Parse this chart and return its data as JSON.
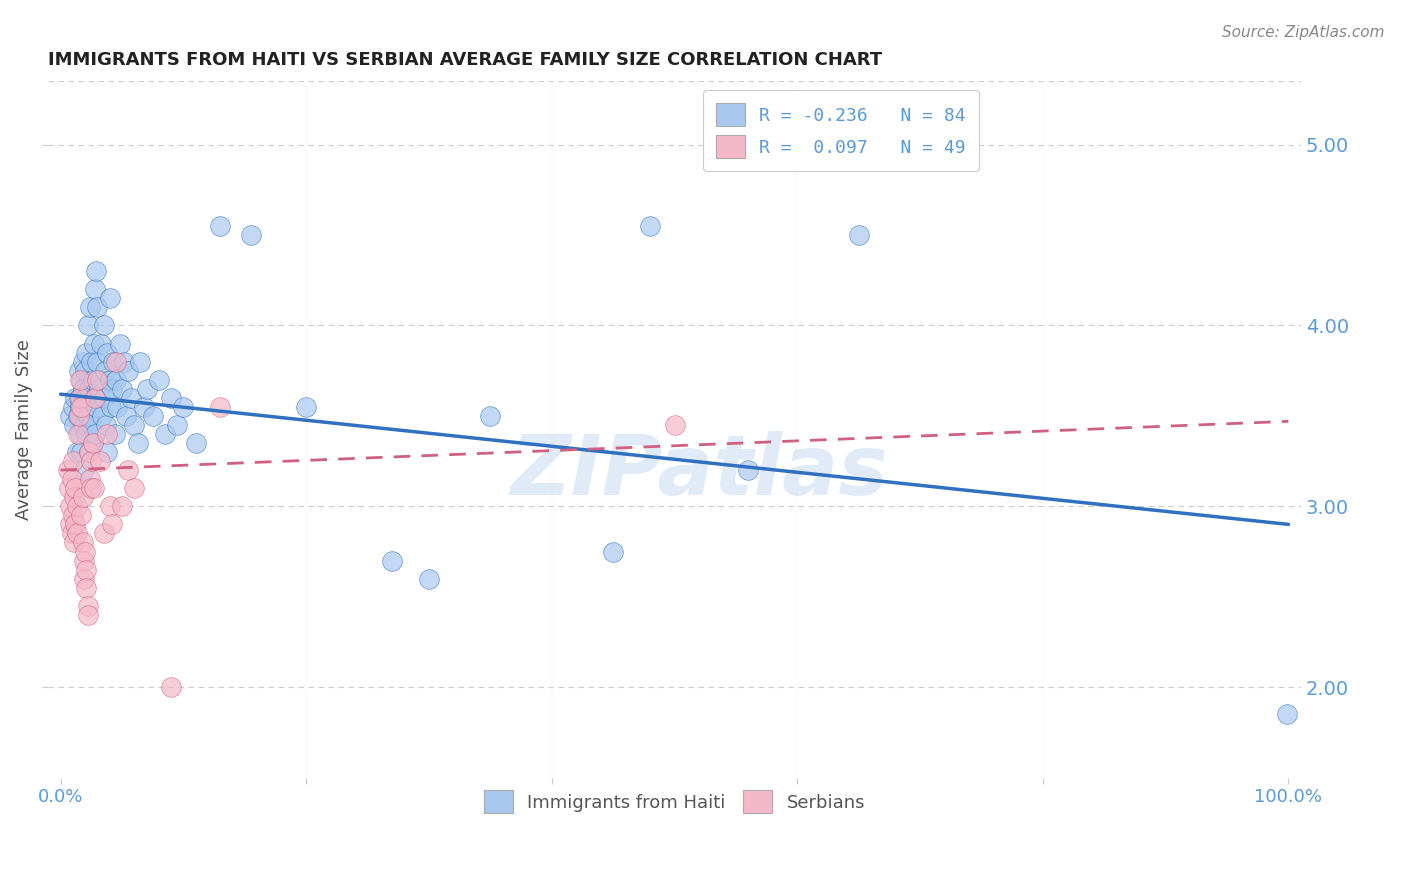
{
  "title": "IMMIGRANTS FROM HAITI VS SERBIAN AVERAGE FAMILY SIZE CORRELATION CHART",
  "source": "Source: ZipAtlas.com",
  "ylabel": "Average Family Size",
  "yticks": [
    2.0,
    3.0,
    4.0,
    5.0
  ],
  "legend_label_blue": "Immigrants from Haiti",
  "legend_label_pink": "Serbians",
  "legend_text_blue": "R = -0.236   N = 84",
  "legend_text_pink": "R =  0.097   N = 49",
  "watermark": "ZIPatlas",
  "blue_face": "#A8C8F0",
  "pink_face": "#F5B8C8",
  "line_blue": "#3070C0",
  "line_pink": "#D06080",
  "title_color": "#222222",
  "tick_color": "#5B9BD5",
  "blue_scatter": [
    [
      0.008,
      3.5
    ],
    [
      0.01,
      3.55
    ],
    [
      0.011,
      3.45
    ],
    [
      0.012,
      3.6
    ],
    [
      0.013,
      3.3
    ],
    [
      0.014,
      3.5
    ],
    [
      0.015,
      3.6
    ],
    [
      0.015,
      3.75
    ],
    [
      0.016,
      3.4
    ],
    [
      0.016,
      3.55
    ],
    [
      0.017,
      3.7
    ],
    [
      0.017,
      3.3
    ],
    [
      0.018,
      3.65
    ],
    [
      0.018,
      3.8
    ],
    [
      0.019,
      3.45
    ],
    [
      0.019,
      3.2
    ],
    [
      0.02,
      3.6
    ],
    [
      0.02,
      3.75
    ],
    [
      0.021,
      3.85
    ],
    [
      0.021,
      3.4
    ],
    [
      0.022,
      4.0
    ],
    [
      0.022,
      3.5
    ],
    [
      0.023,
      3.65
    ],
    [
      0.023,
      3.3
    ],
    [
      0.024,
      4.1
    ],
    [
      0.024,
      3.55
    ],
    [
      0.025,
      3.8
    ],
    [
      0.025,
      3.45
    ],
    [
      0.026,
      3.7
    ],
    [
      0.026,
      3.35
    ],
    [
      0.027,
      3.9
    ],
    [
      0.027,
      3.6
    ],
    [
      0.028,
      4.2
    ],
    [
      0.028,
      3.4
    ],
    [
      0.029,
      4.3
    ],
    [
      0.029,
      3.55
    ],
    [
      0.03,
      4.1
    ],
    [
      0.03,
      3.8
    ],
    [
      0.031,
      3.65
    ],
    [
      0.032,
      3.7
    ],
    [
      0.033,
      3.9
    ],
    [
      0.034,
      3.5
    ],
    [
      0.035,
      4.0
    ],
    [
      0.035,
      3.6
    ],
    [
      0.036,
      3.75
    ],
    [
      0.037,
      3.45
    ],
    [
      0.038,
      3.85
    ],
    [
      0.038,
      3.3
    ],
    [
      0.04,
      4.15
    ],
    [
      0.04,
      3.7
    ],
    [
      0.041,
      3.55
    ],
    [
      0.042,
      3.65
    ],
    [
      0.043,
      3.8
    ],
    [
      0.044,
      3.4
    ],
    [
      0.045,
      3.7
    ],
    [
      0.046,
      3.55
    ],
    [
      0.048,
      3.9
    ],
    [
      0.05,
      3.65
    ],
    [
      0.052,
      3.8
    ],
    [
      0.053,
      3.5
    ],
    [
      0.055,
      3.75
    ],
    [
      0.057,
      3.6
    ],
    [
      0.06,
      3.45
    ],
    [
      0.063,
      3.35
    ],
    [
      0.065,
      3.8
    ],
    [
      0.068,
      3.55
    ],
    [
      0.07,
      3.65
    ],
    [
      0.075,
      3.5
    ],
    [
      0.08,
      3.7
    ],
    [
      0.085,
      3.4
    ],
    [
      0.09,
      3.6
    ],
    [
      0.095,
      3.45
    ],
    [
      0.1,
      3.55
    ],
    [
      0.11,
      3.35
    ],
    [
      0.13,
      4.55
    ],
    [
      0.155,
      4.5
    ],
    [
      0.2,
      3.55
    ],
    [
      0.27,
      2.7
    ],
    [
      0.3,
      2.6
    ],
    [
      0.35,
      3.5
    ],
    [
      0.45,
      2.75
    ],
    [
      0.48,
      4.55
    ],
    [
      0.56,
      3.2
    ],
    [
      0.65,
      4.5
    ],
    [
      0.999,
      1.85
    ]
  ],
  "pink_scatter": [
    [
      0.006,
      3.2
    ],
    [
      0.007,
      3.1
    ],
    [
      0.008,
      2.9
    ],
    [
      0.008,
      3.0
    ],
    [
      0.009,
      2.85
    ],
    [
      0.009,
      3.15
    ],
    [
      0.01,
      2.95
    ],
    [
      0.01,
      3.25
    ],
    [
      0.011,
      3.05
    ],
    [
      0.011,
      2.8
    ],
    [
      0.012,
      3.1
    ],
    [
      0.012,
      2.9
    ],
    [
      0.013,
      3.0
    ],
    [
      0.013,
      2.85
    ],
    [
      0.014,
      3.4
    ],
    [
      0.015,
      3.5
    ],
    [
      0.016,
      3.6
    ],
    [
      0.016,
      3.7
    ],
    [
      0.017,
      3.55
    ],
    [
      0.017,
      2.95
    ],
    [
      0.018,
      3.05
    ],
    [
      0.018,
      2.8
    ],
    [
      0.019,
      2.7
    ],
    [
      0.019,
      2.6
    ],
    [
      0.02,
      2.75
    ],
    [
      0.021,
      2.65
    ],
    [
      0.021,
      2.55
    ],
    [
      0.022,
      2.45
    ],
    [
      0.022,
      2.4
    ],
    [
      0.023,
      3.3
    ],
    [
      0.024,
      3.15
    ],
    [
      0.025,
      3.25
    ],
    [
      0.025,
      3.1
    ],
    [
      0.026,
      3.35
    ],
    [
      0.027,
      3.1
    ],
    [
      0.028,
      3.6
    ],
    [
      0.03,
      3.7
    ],
    [
      0.032,
      3.25
    ],
    [
      0.035,
      2.85
    ],
    [
      0.038,
      3.4
    ],
    [
      0.04,
      3.0
    ],
    [
      0.042,
      2.9
    ],
    [
      0.045,
      3.8
    ],
    [
      0.05,
      3.0
    ],
    [
      0.055,
      3.2
    ],
    [
      0.06,
      3.1
    ],
    [
      0.09,
      2.0
    ],
    [
      0.13,
      3.55
    ],
    [
      0.5,
      3.45
    ]
  ],
  "blue_line_x": [
    0.0,
    1.0
  ],
  "blue_line_y": [
    3.62,
    2.9
  ],
  "pink_line_x": [
    0.0,
    1.0
  ],
  "pink_line_y": [
    3.2,
    3.47
  ],
  "xlim": [
    -0.01,
    1.01
  ],
  "ylim": [
    1.5,
    5.35
  ],
  "figsize": [
    14.06,
    8.92
  ],
  "dpi": 100
}
